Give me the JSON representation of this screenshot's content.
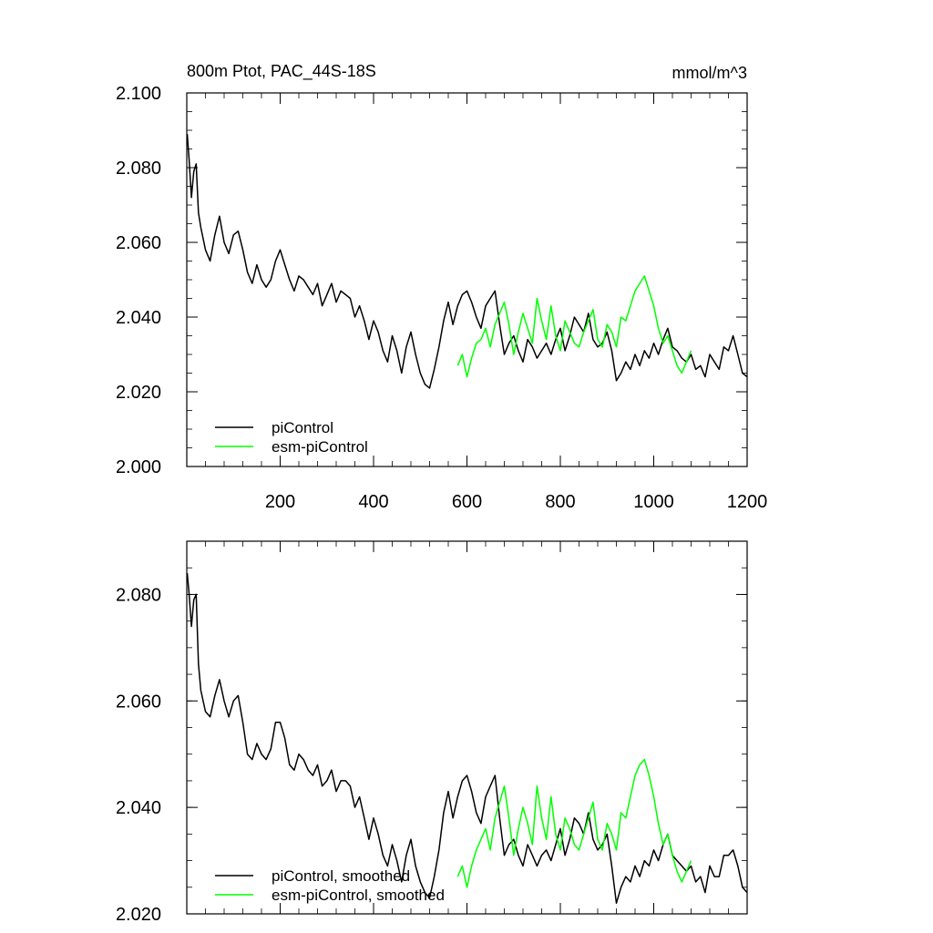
{
  "chart_data": [
    {
      "type": "line",
      "title": "800m Ptot, PAC_44S-18S",
      "units": "mmol/m^3",
      "xlim": [
        0,
        1200
      ],
      "ylim": [
        2.0,
        2.1
      ],
      "xticks": [
        "200",
        "400",
        "600",
        "800",
        "1000",
        "1200"
      ],
      "yticks": [
        "2.000",
        "2.020",
        "2.040",
        "2.060",
        "2.080",
        "2.100"
      ],
      "legend_position": "bottom-left",
      "series": [
        {
          "name": "piControl",
          "color": "#000000",
          "x": [
            1,
            5,
            10,
            15,
            20,
            25,
            30,
            40,
            50,
            60,
            70,
            80,
            90,
            100,
            110,
            120,
            130,
            140,
            150,
            160,
            170,
            180,
            190,
            200,
            210,
            220,
            230,
            240,
            250,
            260,
            270,
            280,
            290,
            300,
            310,
            320,
            330,
            340,
            350,
            360,
            370,
            380,
            390,
            400,
            410,
            420,
            430,
            440,
            450,
            460,
            470,
            480,
            490,
            500,
            510,
            520,
            530,
            540,
            550,
            560,
            570,
            580,
            590,
            600,
            610,
            620,
            630,
            640,
            650,
            660,
            670,
            680,
            690,
            700,
            710,
            720,
            730,
            740,
            750,
            760,
            770,
            780,
            790,
            800,
            810,
            820,
            830,
            840,
            850,
            860,
            870,
            880,
            890,
            900,
            910,
            920,
            930,
            940,
            950,
            960,
            970,
            980,
            990,
            1000,
            1010,
            1020,
            1030,
            1040,
            1050,
            1060,
            1070,
            1080,
            1090,
            1100,
            1110,
            1120,
            1130,
            1140,
            1150,
            1160,
            1170,
            1180,
            1190,
            1200
          ],
          "values": [
            2.089,
            2.082,
            2.072,
            2.079,
            2.081,
            2.068,
            2.064,
            2.058,
            2.055,
            2.062,
            2.067,
            2.06,
            2.057,
            2.062,
            2.063,
            2.058,
            2.052,
            2.049,
            2.054,
            2.05,
            2.048,
            2.05,
            2.055,
            2.058,
            2.054,
            2.05,
            2.047,
            2.051,
            2.05,
            2.048,
            2.046,
            2.049,
            2.043,
            2.046,
            2.049,
            2.044,
            2.047,
            2.046,
            2.045,
            2.04,
            2.043,
            2.039,
            2.034,
            2.039,
            2.036,
            2.031,
            2.028,
            2.035,
            2.031,
            2.025,
            2.032,
            2.036,
            2.03,
            2.025,
            2.022,
            2.021,
            2.026,
            2.032,
            2.039,
            2.044,
            2.038,
            2.043,
            2.046,
            2.047,
            2.044,
            2.04,
            2.037,
            2.043,
            2.045,
            2.047,
            2.038,
            2.03,
            2.033,
            2.035,
            2.031,
            2.028,
            2.034,
            2.032,
            2.029,
            2.031,
            2.033,
            2.03,
            2.034,
            2.037,
            2.031,
            2.035,
            2.04,
            2.038,
            2.036,
            2.041,
            2.034,
            2.032,
            2.033,
            2.036,
            2.031,
            2.023,
            2.025,
            2.028,
            2.026,
            2.03,
            2.027,
            2.031,
            2.029,
            2.033,
            2.03,
            2.034,
            2.037,
            2.032,
            2.031,
            2.029,
            2.028,
            2.03,
            2.026,
            2.027,
            2.024,
            2.03,
            2.028,
            2.026,
            2.032,
            2.031,
            2.035,
            2.03,
            2.025,
            2.024
          ]
        },
        {
          "name": "esm-piControl",
          "color": "#00ff00",
          "x": [
            580,
            590,
            600,
            610,
            620,
            630,
            640,
            650,
            660,
            670,
            680,
            690,
            700,
            710,
            720,
            730,
            740,
            750,
            760,
            770,
            780,
            790,
            800,
            810,
            820,
            830,
            840,
            850,
            860,
            870,
            880,
            890,
            900,
            910,
            920,
            930,
            940,
            950,
            960,
            970,
            980,
            990,
            1000,
            1010,
            1020,
            1030,
            1040,
            1050,
            1060,
            1070,
            1080
          ],
          "values": [
            2.027,
            2.03,
            2.024,
            2.029,
            2.033,
            2.034,
            2.037,
            2.032,
            2.038,
            2.041,
            2.044,
            2.038,
            2.03,
            2.036,
            2.041,
            2.037,
            2.033,
            2.045,
            2.039,
            2.034,
            2.043,
            2.035,
            2.031,
            2.039,
            2.036,
            2.033,
            2.032,
            2.036,
            2.039,
            2.042,
            2.034,
            2.032,
            2.038,
            2.036,
            2.032,
            2.04,
            2.039,
            2.043,
            2.047,
            2.049,
            2.051,
            2.047,
            2.043,
            2.037,
            2.033,
            2.035,
            2.031,
            2.027,
            2.025,
            2.028,
            2.031
          ]
        }
      ]
    },
    {
      "type": "line",
      "xlim": [
        0,
        1200
      ],
      "ylim": [
        2.02,
        2.09
      ],
      "yticks": [
        "2.020",
        "2.040",
        "2.060",
        "2.080"
      ],
      "legend_position": "bottom-left",
      "series": [
        {
          "name": "piControl, smoothed",
          "color": "#000000",
          "x": [
            1,
            5,
            10,
            15,
            20,
            25,
            30,
            40,
            50,
            60,
            70,
            80,
            90,
            100,
            110,
            120,
            130,
            140,
            150,
            160,
            170,
            180,
            190,
            200,
            210,
            220,
            230,
            240,
            250,
            260,
            270,
            280,
            290,
            300,
            310,
            320,
            330,
            340,
            350,
            360,
            370,
            380,
            390,
            400,
            410,
            420,
            430,
            440,
            450,
            460,
            470,
            480,
            490,
            500,
            510,
            520,
            530,
            540,
            550,
            560,
            570,
            580,
            590,
            600,
            610,
            620,
            630,
            640,
            650,
            660,
            670,
            680,
            690,
            700,
            710,
            720,
            730,
            740,
            750,
            760,
            770,
            780,
            790,
            800,
            810,
            820,
            830,
            840,
            850,
            860,
            870,
            880,
            890,
            900,
            910,
            920,
            930,
            940,
            950,
            960,
            970,
            980,
            990,
            1000,
            1010,
            1020,
            1030,
            1040,
            1050,
            1060,
            1070,
            1080,
            1090,
            1100,
            1110,
            1120,
            1130,
            1140,
            1150,
            1160,
            1170,
            1180,
            1190,
            1200
          ],
          "values": [
            2.084,
            2.08,
            2.074,
            2.079,
            2.08,
            2.067,
            2.062,
            2.058,
            2.057,
            2.061,
            2.064,
            2.06,
            2.057,
            2.06,
            2.061,
            2.056,
            2.05,
            2.049,
            2.052,
            2.05,
            2.049,
            2.051,
            2.056,
            2.056,
            2.053,
            2.048,
            2.047,
            2.05,
            2.049,
            2.047,
            2.046,
            2.048,
            2.044,
            2.045,
            2.047,
            2.043,
            2.045,
            2.045,
            2.044,
            2.04,
            2.042,
            2.038,
            2.034,
            2.038,
            2.035,
            2.031,
            2.029,
            2.033,
            2.03,
            2.026,
            2.031,
            2.034,
            2.029,
            2.026,
            2.024,
            2.023,
            2.027,
            2.032,
            2.039,
            2.043,
            2.038,
            2.042,
            2.045,
            2.046,
            2.043,
            2.039,
            2.037,
            2.042,
            2.044,
            2.046,
            2.038,
            2.031,
            2.033,
            2.034,
            2.031,
            2.029,
            2.033,
            2.031,
            2.029,
            2.031,
            2.032,
            2.03,
            2.033,
            2.036,
            2.031,
            2.034,
            2.038,
            2.037,
            2.035,
            2.039,
            2.034,
            2.032,
            2.033,
            2.035,
            2.029,
            2.022,
            2.025,
            2.027,
            2.026,
            2.029,
            2.027,
            2.03,
            2.029,
            2.032,
            2.03,
            2.033,
            2.035,
            2.031,
            2.03,
            2.029,
            2.028,
            2.029,
            2.026,
            2.027,
            2.024,
            2.029,
            2.027,
            2.027,
            2.031,
            2.031,
            2.032,
            2.029,
            2.025,
            2.024
          ]
        },
        {
          "name": "esm-piControl, smoothed",
          "color": "#00ff00",
          "x": [
            580,
            590,
            600,
            610,
            620,
            630,
            640,
            650,
            660,
            670,
            680,
            690,
            700,
            710,
            720,
            730,
            740,
            750,
            760,
            770,
            780,
            790,
            800,
            810,
            820,
            830,
            840,
            850,
            860,
            870,
            880,
            890,
            900,
            910,
            920,
            930,
            940,
            950,
            960,
            970,
            980,
            990,
            1000,
            1010,
            1020,
            1030,
            1040,
            1050,
            1060,
            1070,
            1080
          ],
          "values": [
            2.027,
            2.029,
            2.025,
            2.029,
            2.032,
            2.034,
            2.036,
            2.032,
            2.038,
            2.041,
            2.044,
            2.038,
            2.031,
            2.036,
            2.04,
            2.037,
            2.033,
            2.044,
            2.038,
            2.034,
            2.042,
            2.035,
            2.032,
            2.038,
            2.036,
            2.033,
            2.032,
            2.035,
            2.038,
            2.041,
            2.034,
            2.032,
            2.037,
            2.035,
            2.032,
            2.039,
            2.038,
            2.042,
            2.046,
            2.048,
            2.049,
            2.046,
            2.042,
            2.037,
            2.033,
            2.035,
            2.031,
            2.028,
            2.026,
            2.028,
            2.03
          ]
        }
      ]
    }
  ]
}
